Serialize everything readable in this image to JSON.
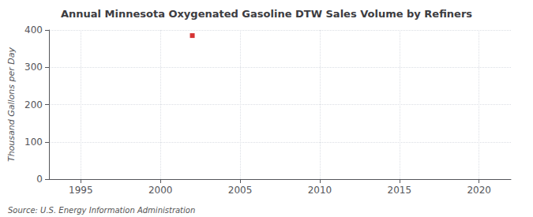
{
  "chart_data": {
    "type": "scatter",
    "title": "Annual Minnesota Oxygenated Gasoline DTW Sales Volume by Refiners",
    "ylabel": "Thousand Gallons per Day",
    "annotation": "Source: U.S. Energy Information Administration",
    "x": [
      2002
    ],
    "values": [
      385
    ],
    "color": "#cc0000",
    "marker": "square",
    "xlim": [
      1993,
      2022
    ],
    "xticks": [
      1995,
      2000,
      2005,
      2010,
      2015,
      2020
    ],
    "ylim": [
      0,
      400
    ],
    "yticks": [
      0,
      100,
      200,
      300,
      400
    ],
    "grid": true
  }
}
